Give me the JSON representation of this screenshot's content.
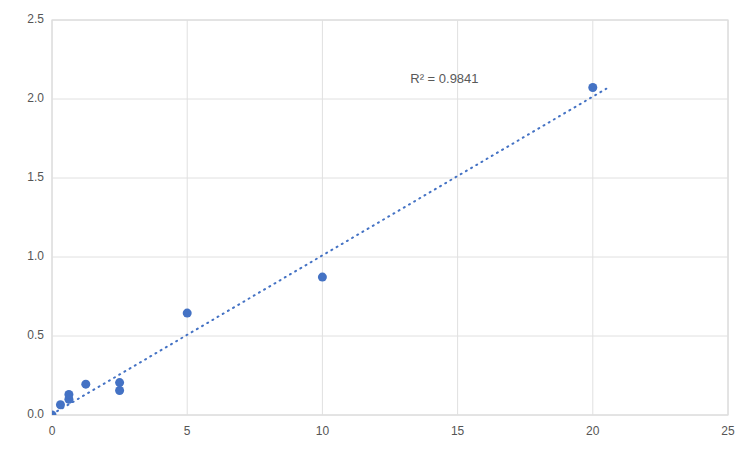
{
  "chart_data": {
    "type": "scatter",
    "annotation": "R² = 0.9841",
    "series": [
      {
        "type": "scatter",
        "x": [
          0,
          0.313,
          0.625,
          0.625,
          1.25,
          2.5,
          2.5,
          5,
          10,
          20
        ],
        "values": [
          0.0,
          0.065,
          0.1,
          0.13,
          0.195,
          0.205,
          0.155,
          0.645,
          0.873,
          2.073
        ],
        "color": "#4472C4",
        "marker": "circle"
      },
      {
        "type": "line",
        "x": [
          0,
          20.5
        ],
        "values": [
          0.005,
          2.06525
        ],
        "color": "#4472C4",
        "line_style": "dotted"
      }
    ],
    "xlim": [
      0,
      25
    ],
    "ylim": [
      0,
      2.5
    ],
    "xticks": [
      0,
      5,
      10,
      15,
      20,
      25
    ],
    "yticks": [
      {
        "value": 0,
        "label": "0.0"
      },
      0.5,
      {
        "value": 1.0,
        "label": "1.0"
      },
      1.5,
      {
        "value": 2.0,
        "label": "2.0"
      },
      2.5
    ],
    "grid": true
  }
}
